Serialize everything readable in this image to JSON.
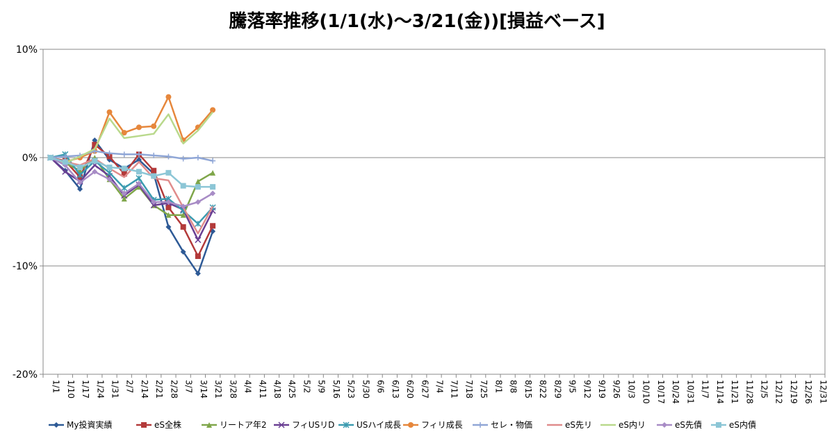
{
  "chart_data": {
    "type": "line",
    "title": "騰落率推移(1/1(水)〜3/21(金))[損益ベース]",
    "xlabel": "",
    "ylabel": "",
    "ylim": [
      -20,
      10
    ],
    "yticks": [
      -20,
      -10,
      0,
      10
    ],
    "ytick_labels": [
      "-20%",
      "-10%",
      "0%",
      "10%"
    ],
    "grid": "horizontal major",
    "legend_position": "bottom",
    "x_labels": [
      "1/1",
      "1/10",
      "1/17",
      "1/24",
      "1/31",
      "2/7",
      "2/14",
      "2/21",
      "2/28",
      "3/7",
      "3/14",
      "3/21",
      "3/28",
      "4/4",
      "4/11",
      "4/18",
      "4/25",
      "5/2",
      "5/9",
      "5/16",
      "5/23",
      "5/30",
      "6/6",
      "6/13",
      "6/20",
      "6/27",
      "7/4",
      "7/11",
      "7/18",
      "7/25",
      "8/1",
      "8/8",
      "8/15",
      "8/22",
      "8/29",
      "9/5",
      "9/12",
      "9/19",
      "9/26",
      "10/3",
      "10/10",
      "10/17",
      "10/24",
      "10/31",
      "11/7",
      "11/14",
      "11/21",
      "11/28",
      "12/5",
      "12/12",
      "12/19",
      "12/26",
      "12/31"
    ],
    "series": [
      {
        "name": "My投資実績",
        "color": "#2E5A96",
        "marker": "diamond",
        "values": [
          0,
          -1.2,
          -2.9,
          1.6,
          -0.2,
          -1.0,
          -0.2,
          -1.5,
          -6.4,
          -8.7,
          -10.7,
          -6.8
        ]
      },
      {
        "name": "eS全株",
        "color": "#B33A3A",
        "marker": "square",
        "values": [
          0,
          -0.3,
          -1.8,
          1.2,
          0.1,
          -1.5,
          0.3,
          -1.2,
          -4.6,
          -6.4,
          -9.1,
          -6.3
        ]
      },
      {
        "name": "リートア年2",
        "color": "#7FA64A",
        "marker": "triangle",
        "values": [
          0,
          -0.5,
          -1.2,
          0.0,
          -2.0,
          -3.8,
          -2.7,
          -4.4,
          -5.3,
          -5.3,
          -2.2,
          -1.4
        ]
      },
      {
        "name": "フィUSリD",
        "color": "#6A3F93",
        "marker": "x",
        "values": [
          0,
          -1.3,
          -2.2,
          -0.7,
          -1.7,
          -3.5,
          -2.5,
          -4.4,
          -4.2,
          -4.8,
          -7.6,
          -4.9
        ]
      },
      {
        "name": "USハイ成長",
        "color": "#3B9BB0",
        "marker": "star",
        "values": [
          0,
          0.3,
          -1.6,
          -0.3,
          -1.4,
          -2.8,
          -1.9,
          -3.9,
          -3.8,
          -4.9,
          -6.1,
          -4.6
        ]
      },
      {
        "name": "フィリ成長",
        "color": "#E6873C",
        "marker": "circle",
        "values": [
          0,
          -0.4,
          0.0,
          0.6,
          4.2,
          2.3,
          2.8,
          2.9,
          5.6,
          1.6,
          2.8,
          4.4
        ]
      },
      {
        "name": "セレ・物価",
        "color": "#8FA6D6",
        "marker": "plus",
        "values": [
          0,
          0.1,
          0.2,
          0.6,
          0.4,
          0.3,
          0.3,
          0.2,
          0.1,
          -0.1,
          0.0,
          -0.3
        ]
      },
      {
        "name": "eS先リ",
        "color": "#E08C8C",
        "marker": "none",
        "values": [
          0,
          -0.4,
          -0.7,
          -0.1,
          -1.0,
          -1.8,
          -0.4,
          -1.9,
          -2.1,
          -4.6,
          -7.0,
          -4.5
        ]
      },
      {
        "name": "eS内リ",
        "color": "#B9D98C",
        "marker": "none",
        "values": [
          0,
          -0.5,
          0.1,
          0.8,
          3.6,
          1.8,
          2.0,
          2.2,
          4.0,
          1.3,
          2.5,
          4.2
        ]
      },
      {
        "name": "eS先債",
        "color": "#A88CC6",
        "marker": "diamond",
        "values": [
          0,
          -0.7,
          -2.3,
          -1.3,
          -2.0,
          -3.3,
          -2.4,
          -4.1,
          -4.1,
          -4.5,
          -4.1,
          -3.3
        ]
      },
      {
        "name": "eS内債",
        "color": "#8CC6D6",
        "marker": "square",
        "values": [
          0,
          -0.4,
          -0.9,
          -0.3,
          -0.9,
          -1.0,
          -1.3,
          -1.7,
          -1.4,
          -2.6,
          -2.7,
          -2.7
        ]
      }
    ]
  }
}
